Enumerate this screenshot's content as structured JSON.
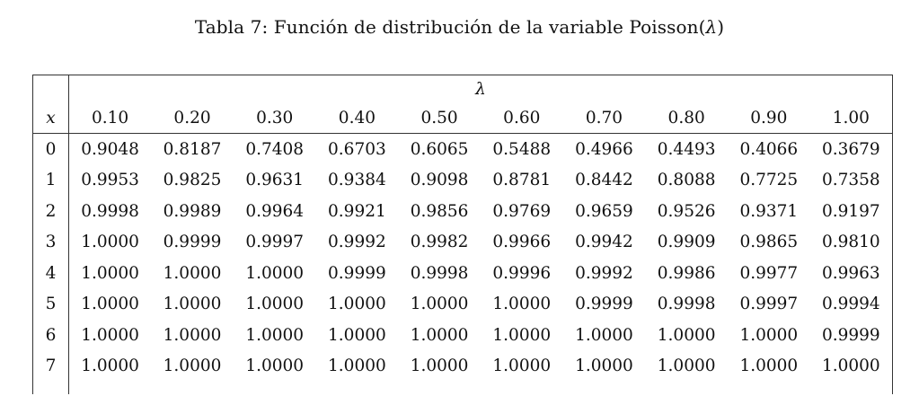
{
  "caption": {
    "prefix": "Tabla 7: Función de distribución de la variable Poisson(",
    "symbol": "λ",
    "suffix": ")"
  },
  "table": {
    "group_header": "λ",
    "row_header": "x",
    "lambdas": [
      "0.10",
      "0.20",
      "0.30",
      "0.40",
      "0.50",
      "0.60",
      "0.70",
      "0.80",
      "0.90",
      "1.00"
    ],
    "rows": [
      {
        "x": "0",
        "values": [
          "0.9048",
          "0.8187",
          "0.7408",
          "0.6703",
          "0.6065",
          "0.5488",
          "0.4966",
          "0.4493",
          "0.4066",
          "0.3679"
        ]
      },
      {
        "x": "1",
        "values": [
          "0.9953",
          "0.9825",
          "0.9631",
          "0.9384",
          "0.9098",
          "0.8781",
          "0.8442",
          "0.8088",
          "0.7725",
          "0.7358"
        ]
      },
      {
        "x": "2",
        "values": [
          "0.9998",
          "0.9989",
          "0.9964",
          "0.9921",
          "0.9856",
          "0.9769",
          "0.9659",
          "0.9526",
          "0.9371",
          "0.9197"
        ]
      },
      {
        "x": "3",
        "values": [
          "1.0000",
          "0.9999",
          "0.9997",
          "0.9992",
          "0.9982",
          "0.9966",
          "0.9942",
          "0.9909",
          "0.9865",
          "0.9810"
        ]
      },
      {
        "x": "4",
        "values": [
          "1.0000",
          "1.0000",
          "1.0000",
          "0.9999",
          "0.9998",
          "0.9996",
          "0.9992",
          "0.9986",
          "0.9977",
          "0.9963"
        ]
      },
      {
        "x": "5",
        "values": [
          "1.0000",
          "1.0000",
          "1.0000",
          "1.0000",
          "1.0000",
          "1.0000",
          "0.9999",
          "0.9998",
          "0.9997",
          "0.9994"
        ]
      },
      {
        "x": "6",
        "values": [
          "1.0000",
          "1.0000",
          "1.0000",
          "1.0000",
          "1.0000",
          "1.0000",
          "1.0000",
          "1.0000",
          "1.0000",
          "0.9999"
        ]
      },
      {
        "x": "7",
        "values": [
          "1.0000",
          "1.0000",
          "1.0000",
          "1.0000",
          "1.0000",
          "1.0000",
          "1.0000",
          "1.0000",
          "1.0000",
          "1.0000"
        ]
      }
    ]
  }
}
